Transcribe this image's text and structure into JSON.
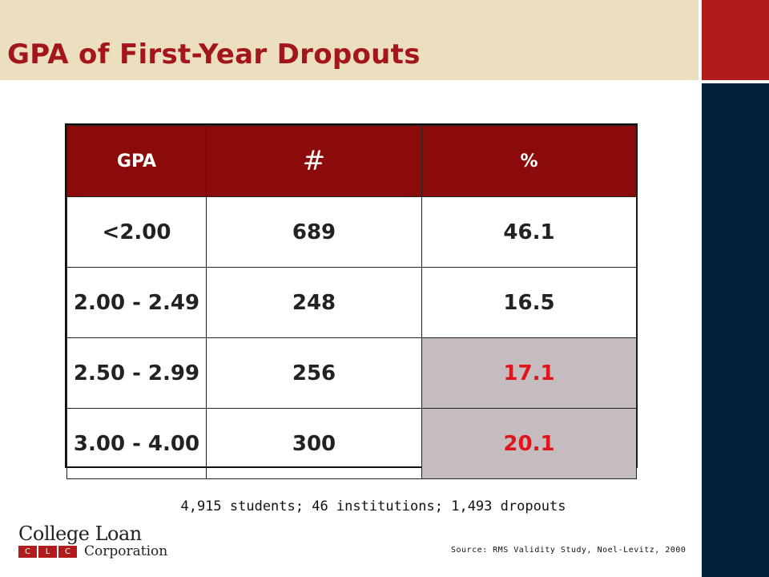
{
  "slide": {
    "title": "GPA of First-Year Dropouts",
    "note": "4,915 students; 46 institutions; 1,493 dropouts",
    "source": "Source: RMS Validity Study, Noel-Levitz, 2000"
  },
  "table": {
    "headers": [
      "GPA",
      "#",
      "%"
    ],
    "rows": [
      {
        "gpa": "<2.00",
        "count": "689",
        "pct": "46.1"
      },
      {
        "gpa": "2.00 - 2.49",
        "count": "248",
        "pct": "16.5"
      },
      {
        "gpa": "2.50 - 2.99",
        "count": "256",
        "pct": "17.1"
      },
      {
        "gpa": "3.00 - 4.00",
        "count": "300",
        "pct": "20.1"
      }
    ]
  },
  "logo": {
    "line1": "College Loan",
    "line2": "Corporation",
    "badge": [
      "C",
      "L",
      "C"
    ]
  },
  "colors": {
    "header_red": "#8b0b0b",
    "highlight_text": "#e0141b",
    "highlight_bg": "#c4bcbe",
    "title_band": "#ecdfc0",
    "accent_red": "#b11b1c",
    "accent_navy": "#03203a"
  }
}
